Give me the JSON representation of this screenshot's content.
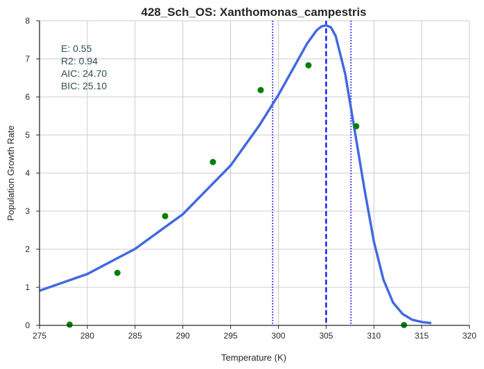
{
  "chart_data": {
    "type": "scatter",
    "title": "428_Sch_OS: Xanthomonas_campestris",
    "xlabel": "Temperature (K)",
    "ylabel": "Population Growth Rate",
    "xlim": [
      275,
      320
    ],
    "ylim": [
      0,
      8
    ],
    "xticks": [
      "275",
      "280",
      "285",
      "290",
      "295",
      "300",
      "305",
      "310",
      "315",
      "320"
    ],
    "yticks": [
      "0",
      "1",
      "2",
      "3",
      "4",
      "5",
      "6",
      "7",
      "8"
    ],
    "grid": true,
    "stats": [
      "E:  0.55",
      "R2:  0.94",
      "AIC: 24.70",
      "BIC: 25.10"
    ],
    "observed": {
      "color": "#008000",
      "x": [
        278.15,
        283.15,
        288.15,
        293.15,
        298.15,
        303.15,
        308.15,
        313.15
      ],
      "y": [
        0.02,
        1.38,
        2.87,
        4.29,
        6.18,
        6.83,
        5.23,
        0.01
      ]
    },
    "fit": {
      "color": "#4169e1",
      "x": [
        275,
        280,
        285,
        290,
        295,
        298,
        300,
        302,
        303,
        304,
        304.5,
        305,
        305.5,
        306,
        307,
        308,
        309,
        310,
        311,
        312,
        313,
        314,
        315,
        316
      ],
      "y": [
        0.91,
        1.35,
        2.01,
        2.92,
        4.2,
        5.25,
        6.05,
        6.95,
        7.4,
        7.75,
        7.85,
        7.88,
        7.83,
        7.6,
        6.6,
        5.1,
        3.6,
        2.2,
        1.2,
        0.6,
        0.3,
        0.15,
        0.09,
        0.06
      ]
    },
    "vlines": [
      {
        "x": 305,
        "style": "dashed",
        "color": "#0000ff"
      },
      {
        "x": 299.4,
        "style": "dotted",
        "color": "#0000ff"
      },
      {
        "x": 307.6,
        "style": "dotted",
        "color": "#0000ff"
      }
    ]
  }
}
